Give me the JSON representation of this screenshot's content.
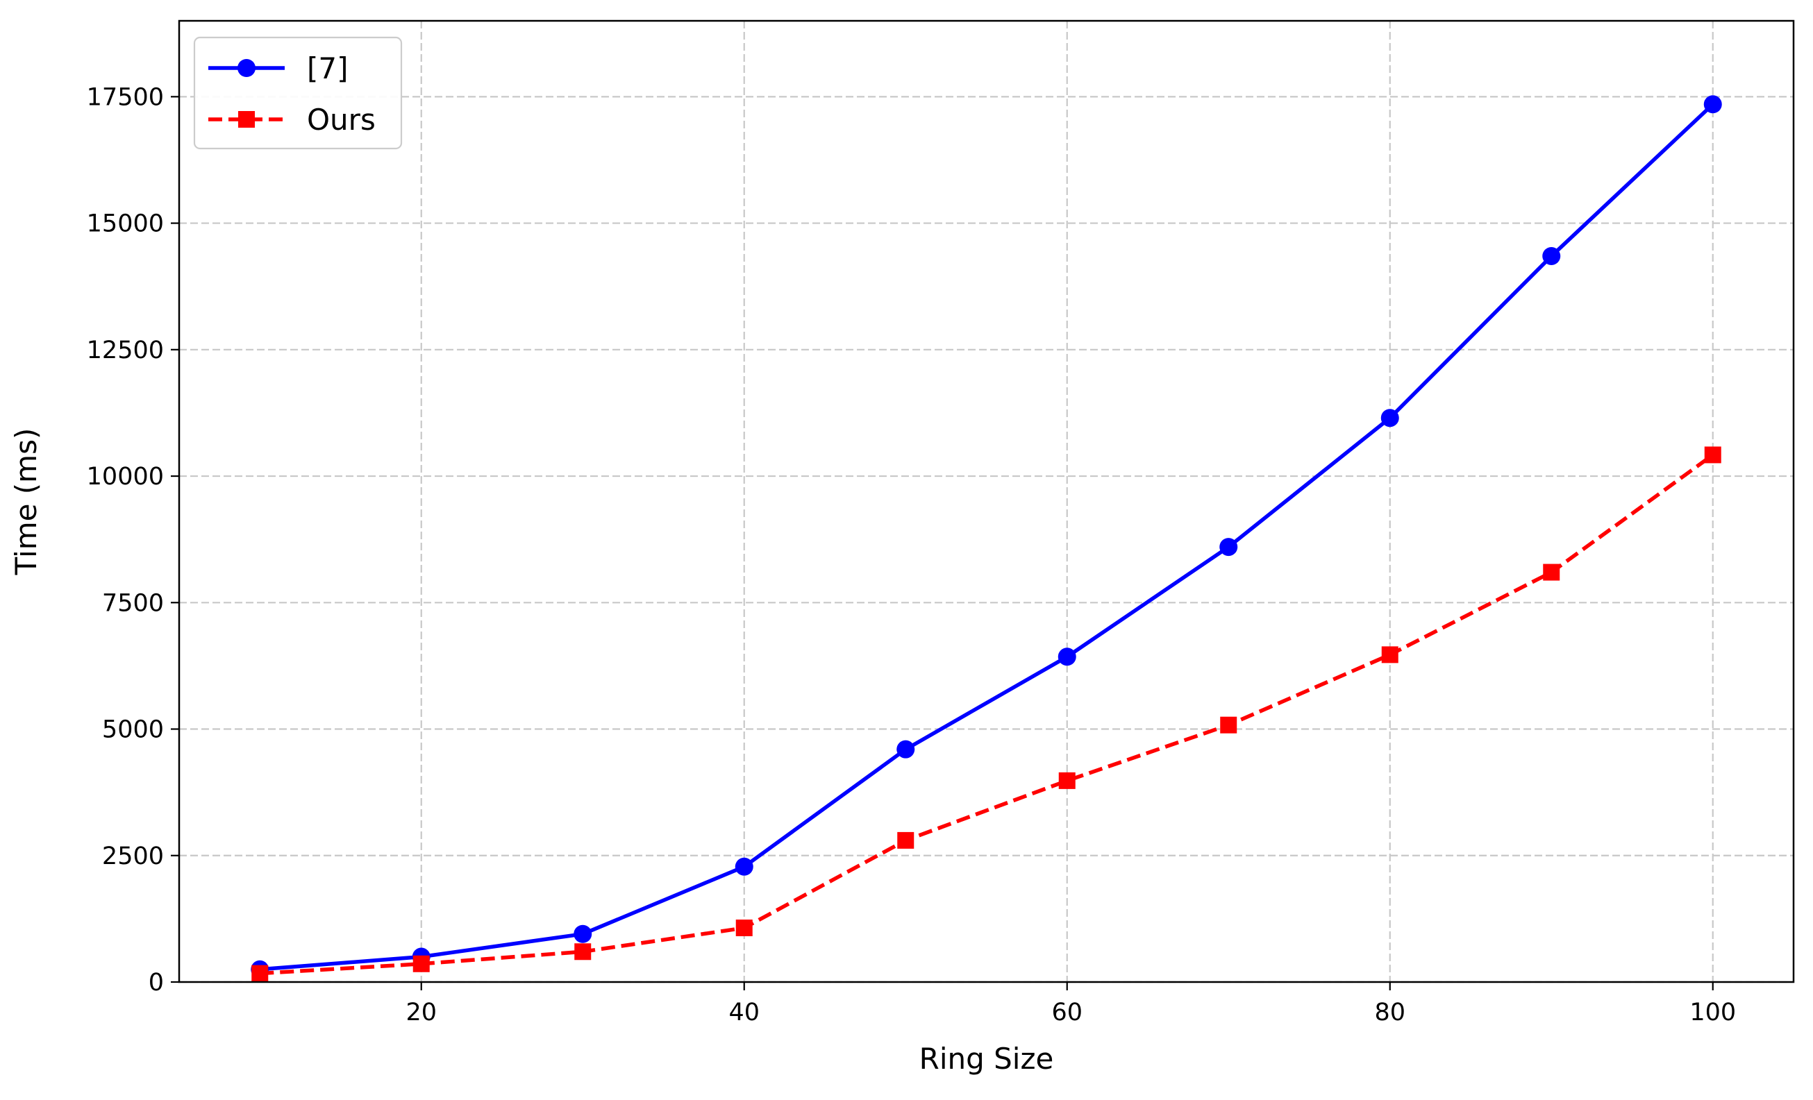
{
  "chart_data": {
    "type": "line",
    "xlabel": "Ring Size",
    "ylabel": "Time (ms)",
    "xlim": [
      5,
      105
    ],
    "ylim": [
      0,
      19000
    ],
    "xticks": [
      20,
      40,
      60,
      80,
      100
    ],
    "yticks": [
      0,
      2500,
      5000,
      7500,
      10000,
      12500,
      15000,
      17500
    ],
    "grid": true,
    "legend_position": "top-left",
    "x": [
      10,
      20,
      30,
      40,
      50,
      60,
      70,
      80,
      90,
      100
    ],
    "series": [
      {
        "name": "[7]",
        "color": "#0000ff",
        "line_style": "solid",
        "marker": "circle",
        "values": [
          250,
          500,
          950,
          2280,
          4600,
          6430,
          8600,
          11150,
          14350,
          17350
        ]
      },
      {
        "name": "Ours",
        "color": "#ff0000",
        "line_style": "dashed",
        "marker": "square",
        "values": [
          170,
          360,
          600,
          1070,
          2800,
          3980,
          5080,
          6470,
          8100,
          10420
        ]
      }
    ]
  }
}
